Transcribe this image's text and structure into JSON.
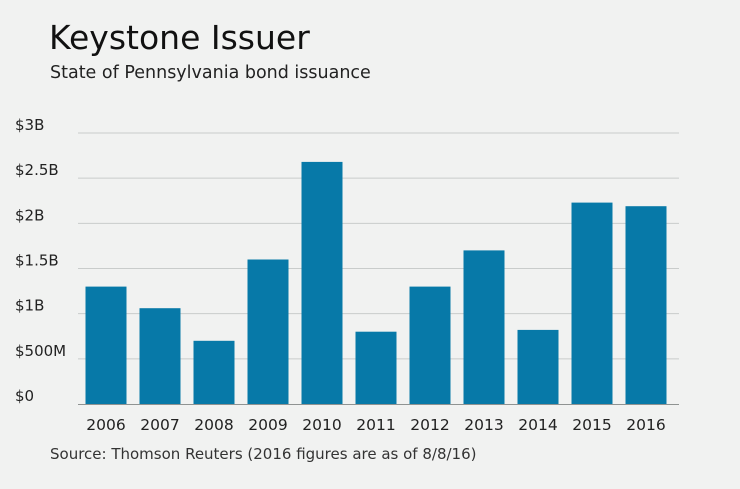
{
  "chart_data": {
    "type": "bar",
    "title": "Keystone Issuer",
    "subtitle": "State of Pennsylvania bond issuance",
    "source": "Source: Thomson Reuters (2016 figures are as of 8/8/16)",
    "xlabel": "",
    "ylabel": "",
    "categories": [
      "2006",
      "2007",
      "2008",
      "2009",
      "2010",
      "2011",
      "2012",
      "2013",
      "2014",
      "2015",
      "2016"
    ],
    "values": [
      1.3,
      1.06,
      0.7,
      1.6,
      2.68,
      0.8,
      1.3,
      1.7,
      0.82,
      2.23,
      2.19
    ],
    "value_unit": "billion USD",
    "ylim": [
      0,
      3
    ],
    "yticks": [
      {
        "value": 0,
        "label": "$0"
      },
      {
        "value": 0.5,
        "label": "$500M"
      },
      {
        "value": 1,
        "label": "$1B"
      },
      {
        "value": 1.5,
        "label": "$1.5B"
      },
      {
        "value": 2,
        "label": "$2B"
      },
      {
        "value": 2.5,
        "label": "$2.5B"
      },
      {
        "value": 3,
        "label": "$3B"
      }
    ],
    "grid": true,
    "legend": "none",
    "colors": {
      "bar": "#0779a8",
      "background": "#f1f2f1"
    }
  }
}
